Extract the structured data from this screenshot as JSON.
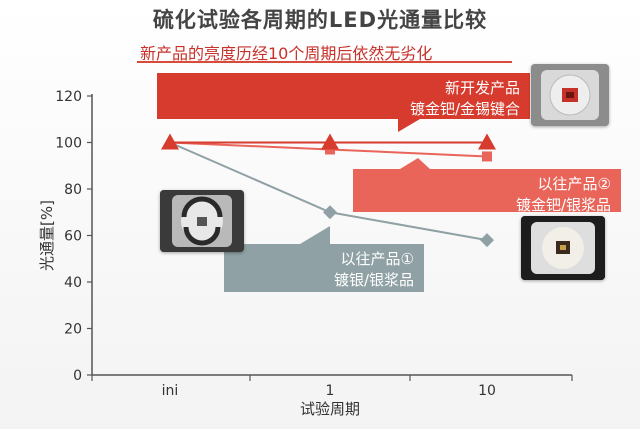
{
  "title": "硫化试验各周期的LED光通量比较",
  "subtitle": "新产品的亮度历经10个周期后依然无劣化",
  "colors": {
    "new_product": "#d63b2e",
    "old_product_2": "#e9655a",
    "old_product_1": "#8fa1a5",
    "subtitle": "#c8312a"
  },
  "chart_data": {
    "type": "line",
    "categories": [
      "ini",
      "1",
      "10"
    ],
    "xlabel": "试验周期",
    "ylabel": "光通量[%]",
    "ylim": [
      0,
      120
    ],
    "yticks": [
      "0",
      "20",
      "40",
      "60",
      "80",
      "100",
      "120"
    ],
    "grid": false,
    "series": [
      {
        "key": "new",
        "label_lines": [
          "新开发产品",
          "镀金钯/金锡键合"
        ],
        "marker": "triangle",
        "values": [
          100,
          100,
          100
        ]
      },
      {
        "key": "old2",
        "label_lines": [
          "以往产品②",
          "镀金钯/银浆品"
        ],
        "marker": "square",
        "values": [
          100,
          97,
          94
        ]
      },
      {
        "key": "old1",
        "label_lines": [
          "以往产品①",
          "镀银/银浆品"
        ],
        "marker": "diamond",
        "values": [
          100,
          70,
          58
        ]
      }
    ]
  },
  "icons": {
    "new": "led-package-new-photo",
    "old1": "led-package-old1-photo",
    "old2": "led-package-old2-photo"
  }
}
